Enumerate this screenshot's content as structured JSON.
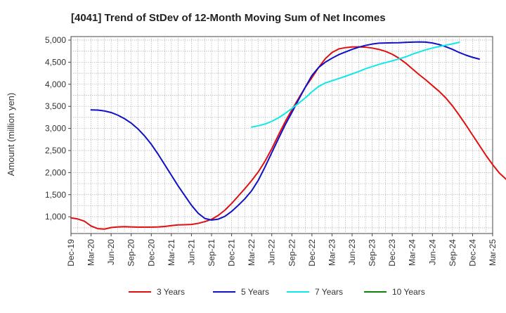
{
  "chart_data": {
    "type": "line",
    "title": "[4041]  Trend of StDev of 12-Month Moving Sum of Net Incomes",
    "ylabel": "Amount (million yen)",
    "xlabel": "",
    "ylim": [
      620,
      5080
    ],
    "yticks": [
      1000,
      1500,
      2000,
      2500,
      3000,
      3500,
      4000,
      4500,
      5000
    ],
    "ytick_labels": [
      "1,000",
      "1,500",
      "2,000",
      "2,500",
      "3,000",
      "3,500",
      "4,000",
      "4,500",
      "5,000"
    ],
    "x_categories": [
      "Dec-19",
      "Mar-20",
      "Jun-20",
      "Sep-20",
      "Dec-20",
      "Mar-21",
      "Jun-21",
      "Sep-21",
      "Dec-21",
      "Mar-22",
      "Jun-22",
      "Sep-22",
      "Dec-22",
      "Mar-23",
      "Jun-23",
      "Sep-23",
      "Dec-23",
      "Mar-24",
      "Jun-24",
      "Sep-24",
      "Dec-24",
      "Mar-25"
    ],
    "x_unit": "month index from Dec-19",
    "grid": true,
    "legend_position": "bottom",
    "series": [
      {
        "name": "3 Years",
        "color": "#e01010",
        "points": [
          [
            0,
            975
          ],
          [
            1,
            950
          ],
          [
            2,
            900
          ],
          [
            3,
            790
          ],
          [
            4,
            730
          ],
          [
            5,
            720
          ],
          [
            6,
            755
          ],
          [
            7,
            770
          ],
          [
            8,
            775
          ],
          [
            9,
            770
          ],
          [
            10,
            765
          ],
          [
            11,
            765
          ],
          [
            12,
            765
          ],
          [
            13,
            770
          ],
          [
            14,
            780
          ],
          [
            15,
            800
          ],
          [
            16,
            815
          ],
          [
            17,
            820
          ],
          [
            18,
            825
          ],
          [
            19,
            850
          ],
          [
            20,
            890
          ],
          [
            21,
            940
          ],
          [
            22,
            1030
          ],
          [
            23,
            1150
          ],
          [
            24,
            1300
          ],
          [
            25,
            1470
          ],
          [
            26,
            1640
          ],
          [
            27,
            1820
          ],
          [
            28,
            2020
          ],
          [
            29,
            2260
          ],
          [
            30,
            2540
          ],
          [
            31,
            2850
          ],
          [
            32,
            3150
          ],
          [
            33,
            3420
          ],
          [
            34,
            3680
          ],
          [
            35,
            3930
          ],
          [
            36,
            4150
          ],
          [
            37,
            4380
          ],
          [
            38,
            4580
          ],
          [
            39,
            4720
          ],
          [
            40,
            4800
          ],
          [
            41,
            4830
          ],
          [
            42,
            4845
          ],
          [
            43,
            4848
          ],
          [
            44,
            4840
          ],
          [
            45,
            4820
          ],
          [
            46,
            4790
          ],
          [
            47,
            4745
          ],
          [
            48,
            4680
          ],
          [
            49,
            4590
          ],
          [
            50,
            4480
          ],
          [
            51,
            4350
          ],
          [
            52,
            4220
          ],
          [
            53,
            4100
          ],
          [
            54,
            3970
          ],
          [
            55,
            3840
          ],
          [
            56,
            3690
          ],
          [
            57,
            3510
          ],
          [
            58,
            3300
          ],
          [
            59,
            3080
          ],
          [
            60,
            2850
          ],
          [
            61,
            2620
          ],
          [
            62,
            2390
          ],
          [
            63,
            2180
          ],
          [
            64,
            1990
          ],
          [
            65,
            1850
          ]
        ]
      },
      {
        "name": "5 Years",
        "color": "#1010c8",
        "points": [
          [
            3,
            3420
          ],
          [
            4,
            3415
          ],
          [
            5,
            3395
          ],
          [
            6,
            3360
          ],
          [
            7,
            3300
          ],
          [
            8,
            3220
          ],
          [
            9,
            3120
          ],
          [
            10,
            2990
          ],
          [
            11,
            2830
          ],
          [
            12,
            2640
          ],
          [
            13,
            2420
          ],
          [
            14,
            2180
          ],
          [
            15,
            1940
          ],
          [
            16,
            1700
          ],
          [
            17,
            1480
          ],
          [
            18,
            1260
          ],
          [
            19,
            1080
          ],
          [
            20,
            960
          ],
          [
            21,
            925
          ],
          [
            22,
            945
          ],
          [
            23,
            1010
          ],
          [
            24,
            1120
          ],
          [
            25,
            1260
          ],
          [
            26,
            1410
          ],
          [
            27,
            1590
          ],
          [
            28,
            1830
          ],
          [
            29,
            2130
          ],
          [
            30,
            2450
          ],
          [
            31,
            2770
          ],
          [
            32,
            3080
          ],
          [
            33,
            3360
          ],
          [
            34,
            3650
          ],
          [
            35,
            3930
          ],
          [
            36,
            4200
          ],
          [
            37,
            4380
          ],
          [
            38,
            4500
          ],
          [
            39,
            4590
          ],
          [
            40,
            4670
          ],
          [
            41,
            4730
          ],
          [
            42,
            4790
          ],
          [
            43,
            4840
          ],
          [
            44,
            4880
          ],
          [
            45,
            4910
          ],
          [
            46,
            4930
          ],
          [
            47,
            4935
          ],
          [
            48,
            4938
          ],
          [
            49,
            4940
          ],
          [
            50,
            4948
          ],
          [
            51,
            4955
          ],
          [
            52,
            4958
          ],
          [
            53,
            4955
          ],
          [
            54,
            4935
          ],
          [
            55,
            4900
          ],
          [
            56,
            4850
          ],
          [
            57,
            4790
          ],
          [
            58,
            4720
          ],
          [
            59,
            4660
          ],
          [
            60,
            4610
          ],
          [
            61,
            4570
          ]
        ]
      },
      {
        "name": "7 Years",
        "color": "#10e8e8",
        "points": [
          [
            27,
            3030
          ],
          [
            28,
            3060
          ],
          [
            29,
            3100
          ],
          [
            30,
            3160
          ],
          [
            31,
            3240
          ],
          [
            32,
            3340
          ],
          [
            33,
            3450
          ],
          [
            34,
            3570
          ],
          [
            35,
            3690
          ],
          [
            36,
            3830
          ],
          [
            37,
            3950
          ],
          [
            38,
            4030
          ],
          [
            39,
            4080
          ],
          [
            40,
            4130
          ],
          [
            41,
            4180
          ],
          [
            42,
            4235
          ],
          [
            43,
            4290
          ],
          [
            44,
            4350
          ],
          [
            45,
            4400
          ],
          [
            46,
            4450
          ],
          [
            47,
            4490
          ],
          [
            48,
            4530
          ],
          [
            49,
            4575
          ],
          [
            50,
            4620
          ],
          [
            51,
            4680
          ],
          [
            52,
            4730
          ],
          [
            53,
            4780
          ],
          [
            54,
            4820
          ],
          [
            55,
            4855
          ],
          [
            56,
            4885
          ],
          [
            57,
            4915
          ],
          [
            58,
            4950
          ]
        ]
      },
      {
        "name": "10 Years",
        "color": "#108010",
        "points": []
      }
    ]
  }
}
